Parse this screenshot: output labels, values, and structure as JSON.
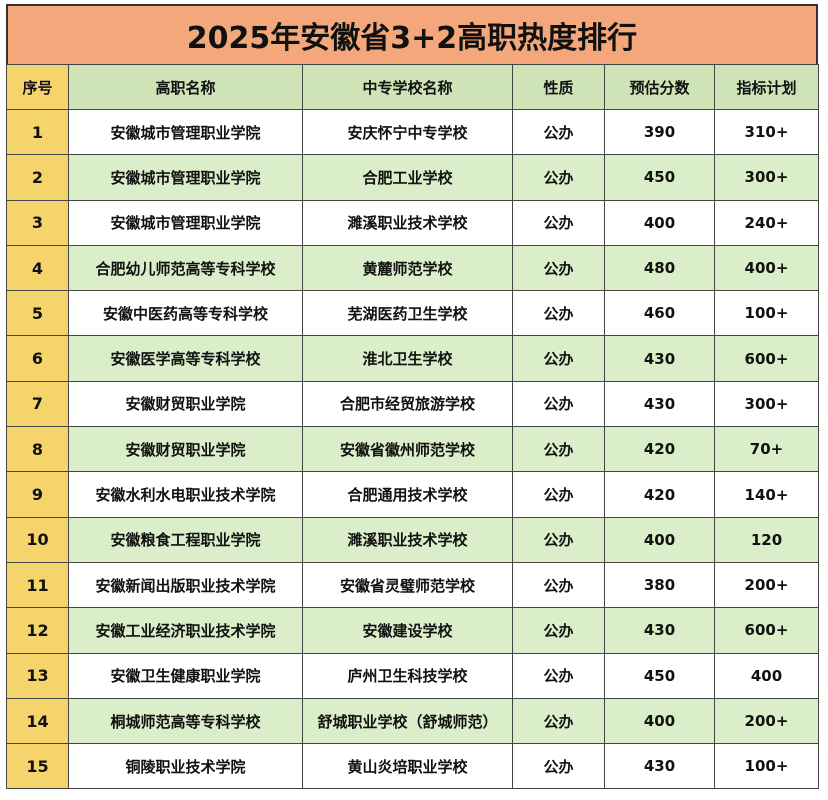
{
  "title": "2025年安徽省3+2高职热度排行",
  "headers": {
    "index": "序号",
    "college": "高职名称",
    "school": "中专学校名称",
    "nature": "性质",
    "score": "预估分数",
    "quota": "指标计划"
  },
  "rows": [
    {
      "index": "1",
      "college": "安徽城市管理职业学院",
      "school": "安庆怀宁中专学校",
      "nature": "公办",
      "score": "390",
      "quota": "310+"
    },
    {
      "index": "2",
      "college": "安徽城市管理职业学院",
      "school": "合肥工业学校",
      "nature": "公办",
      "score": "450",
      "quota": "300+"
    },
    {
      "index": "3",
      "college": "安徽城市管理职业学院",
      "school": "濉溪职业技术学校",
      "nature": "公办",
      "score": "400",
      "quota": "240+"
    },
    {
      "index": "4",
      "college": "合肥幼儿师范高等专科学校",
      "school": "黄麓师范学校",
      "nature": "公办",
      "score": "480",
      "quota": "400+"
    },
    {
      "index": "5",
      "college": "安徽中医药高等专科学校",
      "school": "芜湖医药卫生学校",
      "nature": "公办",
      "score": "460",
      "quota": "100+"
    },
    {
      "index": "6",
      "college": "安徽医学高等专科学校",
      "school": "淮北卫生学校",
      "nature": "公办",
      "score": "430",
      "quota": "600+"
    },
    {
      "index": "7",
      "college": "安徽财贸职业学院",
      "school": "合肥市经贸旅游学校",
      "nature": "公办",
      "score": "430",
      "quota": "300+"
    },
    {
      "index": "8",
      "college": "安徽财贸职业学院",
      "school": "安徽省徽州师范学校",
      "nature": "公办",
      "score": "420",
      "quota": "70+"
    },
    {
      "index": "9",
      "college": "安徽水利水电职业技术学院",
      "school": "合肥通用技术学校",
      "nature": "公办",
      "score": "420",
      "quota": "140+"
    },
    {
      "index": "10",
      "college": "安徽粮食工程职业学院",
      "school": "濉溪职业技术学校",
      "nature": "公办",
      "score": "400",
      "quota": "120"
    },
    {
      "index": "11",
      "college": "安徽新闻出版职业技术学院",
      "school": "安徽省灵璧师范学校",
      "nature": "公办",
      "score": "380",
      "quota": "200+"
    },
    {
      "index": "12",
      "college": "安徽工业经济职业技术学院",
      "school": "安徽建设学校",
      "nature": "公办",
      "score": "430",
      "quota": "600+"
    },
    {
      "index": "13",
      "college": "安徽卫生健康职业学院",
      "school": "庐州卫生科技学校",
      "nature": "公办",
      "score": "450",
      "quota": "400"
    },
    {
      "index": "14",
      "college": "桐城师范高等专科学校",
      "school": "舒城职业学校（舒城师范）",
      "nature": "公办",
      "score": "400",
      "quota": "200+"
    },
    {
      "index": "15",
      "college": "铜陵职业技术学院",
      "school": "黄山炎培职业学校",
      "nature": "公办",
      "score": "430",
      "quota": "100+"
    }
  ],
  "colors": {
    "title_bg": "#f4a77b",
    "index_bg": "#f5d56b",
    "header_bg": "#cfe4b6",
    "alt_row_bg": "#daeec9",
    "plain_row_bg": "#ffffff"
  }
}
